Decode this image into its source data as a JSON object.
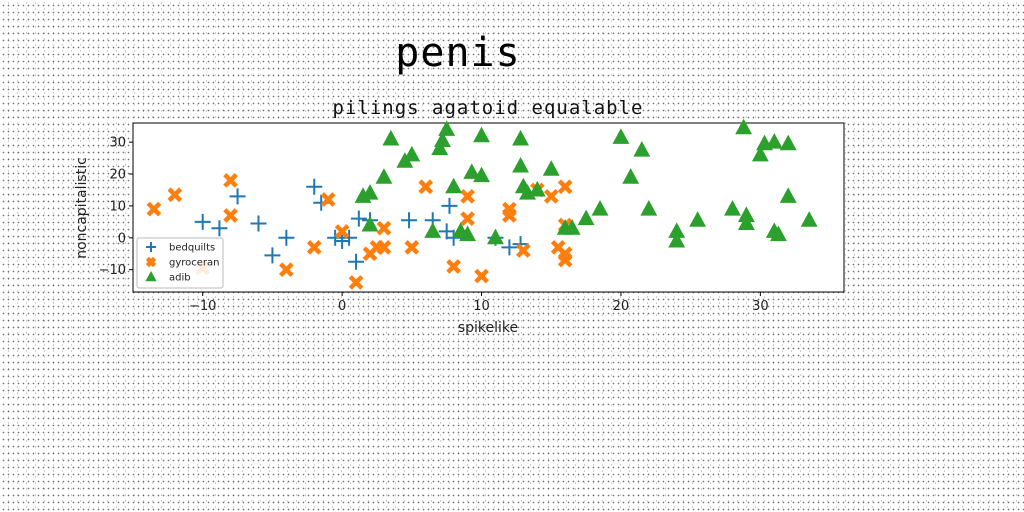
{
  "title": "penis",
  "chart_data": {
    "type": "scatter",
    "title": "pilings agatoid equalable",
    "xlabel": "spikelike",
    "ylabel": "noncapitalistic",
    "xlim": [
      -15,
      36
    ],
    "ylim": [
      -17,
      36
    ],
    "xticks": [
      -10,
      0,
      10,
      20,
      30
    ],
    "yticks": [
      -10,
      0,
      10,
      20,
      30
    ],
    "grid": false,
    "legend_position": "lower-left",
    "series": [
      {
        "name": "bedquilts",
        "marker": "plus",
        "color": "#1f77b4",
        "points": [
          [
            -10,
            5
          ],
          [
            -8.8,
            3
          ],
          [
            -7.5,
            13
          ],
          [
            -6,
            4.5
          ],
          [
            -5,
            -5.5
          ],
          [
            -4,
            0
          ],
          [
            -2,
            16
          ],
          [
            -1.5,
            11
          ],
          [
            -0.5,
            0
          ],
          [
            0,
            -1
          ],
          [
            0.5,
            0
          ],
          [
            1,
            -7.5
          ],
          [
            1.2,
            6
          ],
          [
            2,
            5.5
          ],
          [
            4.8,
            5.5
          ],
          [
            6.5,
            5.5
          ],
          [
            7.5,
            2
          ],
          [
            7.7,
            10
          ],
          [
            8,
            0
          ],
          [
            11,
            0
          ],
          [
            12,
            -3
          ],
          [
            12.8,
            -2
          ]
        ]
      },
      {
        "name": "gyroceran",
        "marker": "x",
        "color": "#ff7f0e",
        "points": [
          [
            -13.5,
            9
          ],
          [
            -12,
            13.5
          ],
          [
            -10,
            -9.5
          ],
          [
            -8,
            18
          ],
          [
            -8,
            7
          ],
          [
            -4,
            -10
          ],
          [
            -2,
            -3
          ],
          [
            -1,
            12
          ],
          [
            0,
            2
          ],
          [
            1,
            -14
          ],
          [
            2,
            -5
          ],
          [
            2.5,
            -3
          ],
          [
            3,
            3
          ],
          [
            3,
            -3
          ],
          [
            5,
            -3
          ],
          [
            6,
            16
          ],
          [
            8,
            -9
          ],
          [
            9,
            6
          ],
          [
            9,
            13
          ],
          [
            10,
            -12
          ],
          [
            12,
            9
          ],
          [
            12,
            7
          ],
          [
            13,
            -4
          ],
          [
            14,
            15
          ],
          [
            15,
            13
          ],
          [
            15.5,
            -3
          ],
          [
            16,
            -5
          ],
          [
            16,
            4
          ],
          [
            16,
            16
          ],
          [
            16,
            -7
          ]
        ]
      },
      {
        "name": "adib",
        "marker": "triangle",
        "color": "#2ca02c",
        "points": [
          [
            1.5,
            13
          ],
          [
            2,
            14
          ],
          [
            2,
            4
          ],
          [
            3,
            19
          ],
          [
            3.5,
            31
          ],
          [
            4.5,
            24
          ],
          [
            5,
            26
          ],
          [
            6.5,
            2
          ],
          [
            7,
            28
          ],
          [
            7.2,
            30.5
          ],
          [
            7.5,
            34
          ],
          [
            8,
            16
          ],
          [
            8.5,
            2
          ],
          [
            9,
            1
          ],
          [
            9.3,
            20.5
          ],
          [
            10,
            32
          ],
          [
            10,
            19.5
          ],
          [
            11,
            0
          ],
          [
            12.8,
            31
          ],
          [
            12.8,
            22.5
          ],
          [
            13,
            16
          ],
          [
            13.3,
            14
          ],
          [
            14,
            15
          ],
          [
            15,
            21.5
          ],
          [
            16,
            3
          ],
          [
            16.5,
            3
          ],
          [
            17.5,
            6
          ],
          [
            18.5,
            9
          ],
          [
            20,
            31.5
          ],
          [
            20.7,
            19
          ],
          [
            21.5,
            27.5
          ],
          [
            22,
            9
          ],
          [
            24,
            2
          ],
          [
            24,
            -1
          ],
          [
            25.5,
            5.5
          ],
          [
            28,
            9
          ],
          [
            29,
            7
          ],
          [
            29,
            4.5
          ],
          [
            28.8,
            34.5
          ],
          [
            30,
            26
          ],
          [
            30.3,
            29.5
          ],
          [
            31,
            30
          ],
          [
            31,
            2
          ],
          [
            31.3,
            1
          ],
          [
            32,
            29.5
          ],
          [
            32,
            13
          ],
          [
            33.5,
            5.5
          ]
        ]
      }
    ]
  }
}
